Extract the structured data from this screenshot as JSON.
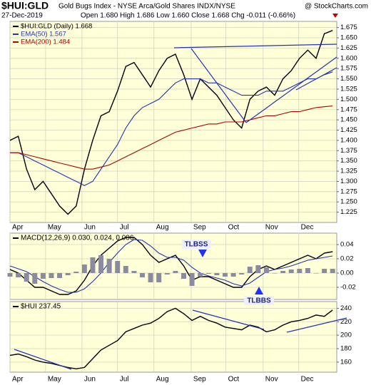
{
  "header": {
    "symbol": "$HUI:GLD",
    "description": "Gold Bugs Index - NYSE Arca/Gold Shares  INDX/NYSE",
    "source": "@ StockCharts.com",
    "date": "27-Dec-2019",
    "quote": "Open 1.680  High 1.686  Low 1.660  Close 1.668  Chg -0.011 (-0.66%)"
  },
  "chart_data": [
    {
      "type": "line",
      "xlim": [
        0,
        39.5
      ],
      "xticks": [
        {
          "value": 0,
          "label": "Apr"
        },
        {
          "value": 4.3,
          "label": "May"
        },
        {
          "value": 8.7,
          "label": "Jun"
        },
        {
          "value": 13,
          "label": "Jul"
        },
        {
          "value": 17.4,
          "label": "Aug"
        },
        {
          "value": 21.9,
          "label": "Sep"
        },
        {
          "value": 26.1,
          "label": "Oct"
        },
        {
          "value": 30.6,
          "label": "Nov"
        },
        {
          "value": 34.9,
          "label": "Dec"
        }
      ],
      "ylim": [
        1.2,
        1.69
      ],
      "yticks": [
        1.225,
        {
          "value": 1.25,
          "label": "1.250"
        },
        1.275,
        {
          "value": 1.3,
          "label": "1.300"
        },
        1.325,
        {
          "value": 1.35,
          "label": "1.350"
        },
        1.375,
        {
          "value": 1.4,
          "label": "1.400"
        },
        1.425,
        {
          "value": 1.45,
          "label": "1.450"
        },
        1.475,
        {
          "value": 1.5,
          "label": "1.500"
        },
        1.525,
        {
          "value": 1.55,
          "label": "1.550"
        },
        1.575,
        {
          "value": 1.6,
          "label": "1.600"
        },
        1.625,
        {
          "value": 1.65,
          "label": "1.650"
        },
        1.675
      ],
      "grid": true,
      "series": [
        {
          "name": "$HUI:GLD (Daily) 1.668",
          "color": "#000000",
          "values": [
            1.4,
            1.41,
            1.33,
            1.28,
            1.3,
            1.27,
            1.24,
            1.22,
            1.24,
            1.33,
            1.4,
            1.46,
            1.47,
            1.52,
            1.58,
            1.59,
            1.56,
            1.53,
            1.57,
            1.6,
            1.61,
            1.56,
            1.5,
            1.55,
            1.53,
            1.51,
            1.48,
            1.45,
            1.43,
            1.5,
            1.52,
            1.53,
            1.51,
            1.55,
            1.57,
            1.6,
            1.62,
            1.6,
            1.66,
            1.668
          ]
        },
        {
          "name": "EMA(50) 1.567",
          "color": "#2233bb",
          "values": [
            1.37,
            1.37,
            1.36,
            1.35,
            1.34,
            1.33,
            1.32,
            1.31,
            1.3,
            1.29,
            1.3,
            1.33,
            1.36,
            1.39,
            1.43,
            1.46,
            1.48,
            1.49,
            1.5,
            1.52,
            1.54,
            1.55,
            1.55,
            1.55,
            1.54,
            1.54,
            1.53,
            1.52,
            1.51,
            1.51,
            1.51,
            1.52,
            1.52,
            1.52,
            1.53,
            1.54,
            1.55,
            1.55,
            1.56,
            1.567
          ]
        },
        {
          "name": "EMA(200) 1.484",
          "color": "#b00000",
          "values": [
            1.37,
            1.37,
            1.365,
            1.36,
            1.355,
            1.35,
            1.345,
            1.34,
            1.335,
            1.33,
            1.33,
            1.335,
            1.34,
            1.35,
            1.36,
            1.37,
            1.38,
            1.39,
            1.4,
            1.41,
            1.42,
            1.425,
            1.43,
            1.435,
            1.44,
            1.44,
            1.445,
            1.445,
            1.445,
            1.45,
            1.455,
            1.46,
            1.46,
            1.465,
            1.47,
            1.47,
            1.475,
            1.48,
            1.482,
            1.484
          ]
        }
      ]
    },
    {
      "type": "line",
      "label": "MACD(12,26,9) 0.030, 0.024, 0.006",
      "xlim": [
        0,
        39.5
      ],
      "ylim": [
        -0.037,
        0.056
      ],
      "yticks": [
        0.04,
        0.02,
        {
          "value": 0,
          "label": "0.00"
        },
        -0.02
      ],
      "grid": true,
      "annotations": [
        "TLBSS",
        "TLBBS"
      ],
      "series": [
        {
          "color": "#000000",
          "values": [
            0.005,
            0.0,
            -0.01,
            -0.02,
            -0.02,
            -0.025,
            -0.03,
            -0.03,
            -0.025,
            -0.01,
            0.01,
            0.025,
            0.035,
            0.045,
            0.05,
            0.05,
            0.04,
            0.025,
            0.015,
            0.02,
            0.025,
            0.01,
            -0.01,
            -0.005,
            -0.005,
            -0.01,
            -0.015,
            -0.02,
            -0.02,
            -0.005,
            0.005,
            0.01,
            0.005,
            0.01,
            0.015,
            0.02,
            0.025,
            0.02,
            0.028,
            0.03
          ]
        },
        {
          "color": "#2233bb",
          "values": [
            0.01,
            0.006,
            0.002,
            -0.005,
            -0.012,
            -0.018,
            -0.023,
            -0.027,
            -0.027,
            -0.022,
            -0.012,
            0.0,
            0.015,
            0.028,
            0.04,
            0.047,
            0.046,
            0.038,
            0.028,
            0.022,
            0.022,
            0.018,
            0.008,
            0.0,
            -0.004,
            -0.007,
            -0.01,
            -0.015,
            -0.018,
            -0.014,
            -0.006,
            0.002,
            0.005,
            0.007,
            0.01,
            0.014,
            0.018,
            0.02,
            0.022,
            0.024
          ]
        },
        {
          "kind": "histogram",
          "color": "#8a8aa0",
          "values": [
            -0.005,
            -0.006,
            -0.012,
            -0.015,
            -0.008,
            -0.007,
            -0.007,
            -0.003,
            0.002,
            0.012,
            0.022,
            0.025,
            0.02,
            0.017,
            0.01,
            0.003,
            -0.006,
            -0.013,
            -0.013,
            -0.002,
            0.003,
            -0.008,
            -0.018,
            -0.005,
            -0.001,
            -0.003,
            -0.005,
            -0.005,
            -0.002,
            0.009,
            0.011,
            0.008,
            0.0,
            0.003,
            0.005,
            0.006,
            0.007,
            0.0,
            0.006,
            0.006
          ]
        }
      ]
    },
    {
      "type": "line",
      "label": "$HUI 237.45",
      "xlim": [
        0,
        39.5
      ],
      "xticks": [
        {
          "value": 0,
          "label": "Apr"
        },
        {
          "value": 4.3,
          "label": "May"
        },
        {
          "value": 8.7,
          "label": "Jun"
        },
        {
          "value": 13,
          "label": "Jul"
        },
        {
          "value": 17.4,
          "label": "Aug"
        },
        {
          "value": 21.9,
          "label": "Sep"
        },
        {
          "value": 26.1,
          "label": "Oct"
        },
        {
          "value": 30.6,
          "label": "Nov"
        },
        {
          "value": 34.9,
          "label": "Dec"
        }
      ],
      "ylim": [
        145,
        250
      ],
      "yticks": [
        160,
        180,
        200,
        220,
        240
      ],
      "grid": true,
      "series": [
        {
          "color": "#000000",
          "values": [
            170,
            172,
            168,
            163,
            160,
            158,
            155,
            152,
            150,
            152,
            165,
            178,
            185,
            192,
            205,
            210,
            215,
            218,
            225,
            235,
            240,
            232,
            222,
            228,
            222,
            218,
            212,
            210,
            208,
            215,
            212,
            205,
            208,
            215,
            220,
            222,
            225,
            230,
            228,
            237.45
          ]
        }
      ]
    }
  ]
}
